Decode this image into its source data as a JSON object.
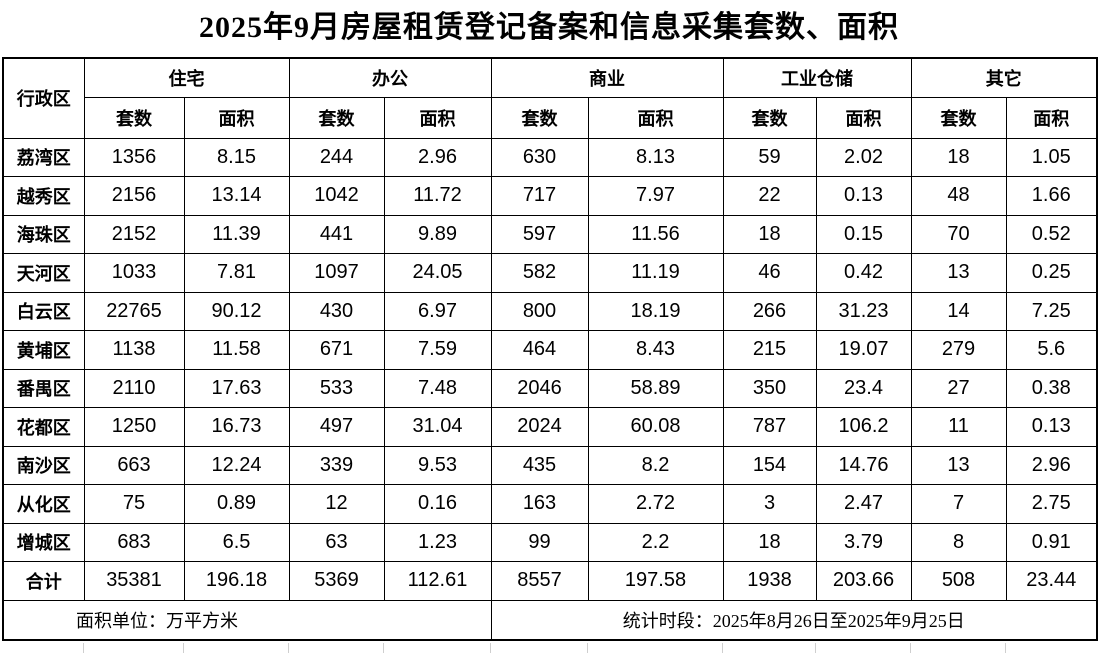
{
  "title": "2025年9月房屋租赁登记备案和信息采集套数、面积",
  "table": {
    "corner_header": "行政区",
    "groups": [
      {
        "label": "住宅",
        "flagged": true
      },
      {
        "label": "办公",
        "flagged": true
      },
      {
        "label": "商业",
        "flagged": false
      },
      {
        "label": "工业仓储",
        "flagged": true
      },
      {
        "label": "其它",
        "flagged": true
      }
    ],
    "sub_headers": [
      "套数",
      "面积"
    ],
    "rows": [
      {
        "district": "荔湾区",
        "values": [
          "1356",
          "8.15",
          "244",
          "2.96",
          "630",
          "8.13",
          "59",
          "2.02",
          "18",
          "1.05"
        ]
      },
      {
        "district": "越秀区",
        "values": [
          "2156",
          "13.14",
          "1042",
          "11.72",
          "717",
          "7.97",
          "22",
          "0.13",
          "48",
          "1.66"
        ]
      },
      {
        "district": "海珠区",
        "values": [
          "2152",
          "11.39",
          "441",
          "9.89",
          "597",
          "11.56",
          "18",
          "0.15",
          "70",
          "0.52"
        ]
      },
      {
        "district": "天河区",
        "values": [
          "1033",
          "7.81",
          "1097",
          "24.05",
          "582",
          "11.19",
          "46",
          "0.42",
          "13",
          "0.25"
        ]
      },
      {
        "district": "白云区",
        "values": [
          "22765",
          "90.12",
          "430",
          "6.97",
          "800",
          "18.19",
          "266",
          "31.23",
          "14",
          "7.25"
        ]
      },
      {
        "district": "黄埔区",
        "values": [
          "1138",
          "11.58",
          "671",
          "7.59",
          "464",
          "8.43",
          "215",
          "19.07",
          "279",
          "5.6"
        ]
      },
      {
        "district": "番禺区",
        "values": [
          "2110",
          "17.63",
          "533",
          "7.48",
          "2046",
          "58.89",
          "350",
          "23.4",
          "27",
          "0.38"
        ]
      },
      {
        "district": "花都区",
        "values": [
          "1250",
          "16.73",
          "497",
          "31.04",
          "2024",
          "60.08",
          "787",
          "106.2",
          "11",
          "0.13"
        ]
      },
      {
        "district": "南沙区",
        "values": [
          "663",
          "12.24",
          "339",
          "9.53",
          "435",
          "8.2",
          "154",
          "14.76",
          "13",
          "2.96"
        ]
      },
      {
        "district": "从化区",
        "values": [
          "75",
          "0.89",
          "12",
          "0.16",
          "163",
          "2.72",
          "3",
          "2.47",
          "7",
          "2.75"
        ]
      },
      {
        "district": "增城区",
        "values": [
          "683",
          "6.5",
          "63",
          "1.23",
          "99",
          "2.2",
          "18",
          "3.79",
          "8",
          "0.91"
        ]
      }
    ],
    "total_row": {
      "district": "合计",
      "values": [
        "35381",
        "196.18",
        "5369",
        "112.61",
        "8557",
        "197.58",
        "1938",
        "203.66",
        "508",
        "23.44"
      ]
    }
  },
  "footer": {
    "area_unit": "面积单位：万平方米",
    "period": "统计时段：2025年8月26日至2025年9月25日"
  },
  "colors": {
    "flag_green": "#1f7a1f",
    "grid_gray": "#cfcfcf",
    "border_black": "#000000"
  }
}
